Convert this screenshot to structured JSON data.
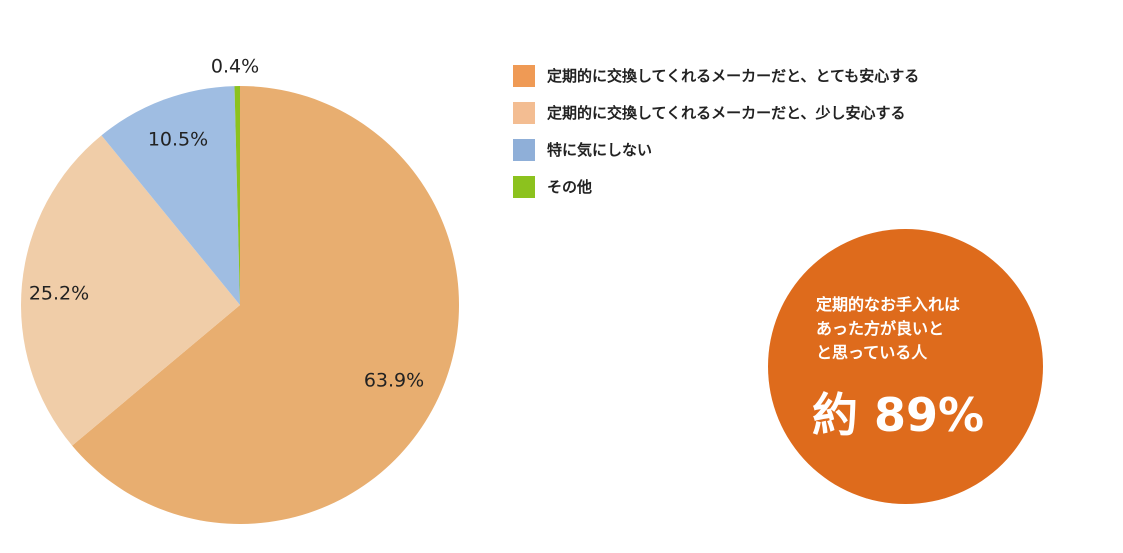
{
  "chart_data": {
    "type": "pie",
    "title": "",
    "slices": [
      {
        "label": "定期的に交換してくれるメーカーだと、とても安心する",
        "value": 63.9,
        "display": "63.9%",
        "color": "#e8ae70"
      },
      {
        "label": "定期的に交換してくれるメーカーだと、少し安心する",
        "value": 25.2,
        "display": "25.2%",
        "color": "#f0cda8"
      },
      {
        "label": "特に気にしない",
        "value": 10.5,
        "display": "10.5%",
        "color": "#9fbde2"
      },
      {
        "label": "その他",
        "value": 0.4,
        "display": "0.4%",
        "color": "#8cc21e"
      }
    ],
    "legend_position": "top-right",
    "start_angle": "12 o'clock",
    "direction": "clockwise"
  },
  "legend": {
    "items": [
      {
        "label": "定期的に交換してくれるメーカーだと、とても安心する",
        "color": "#ef9a55"
      },
      {
        "label": "定期的に交換してくれるメーカーだと、少し安心する",
        "color": "#f3bd92"
      },
      {
        "label": "特に気にしない",
        "color": "#8fafd8"
      },
      {
        "label": "その他",
        "color": "#8cc21e"
      }
    ]
  },
  "callout": {
    "lines": [
      "定期的なお手入れは",
      "あった方が良いと",
      "と思っている人"
    ],
    "figure": "約 89%",
    "color": "#de6b1c"
  }
}
